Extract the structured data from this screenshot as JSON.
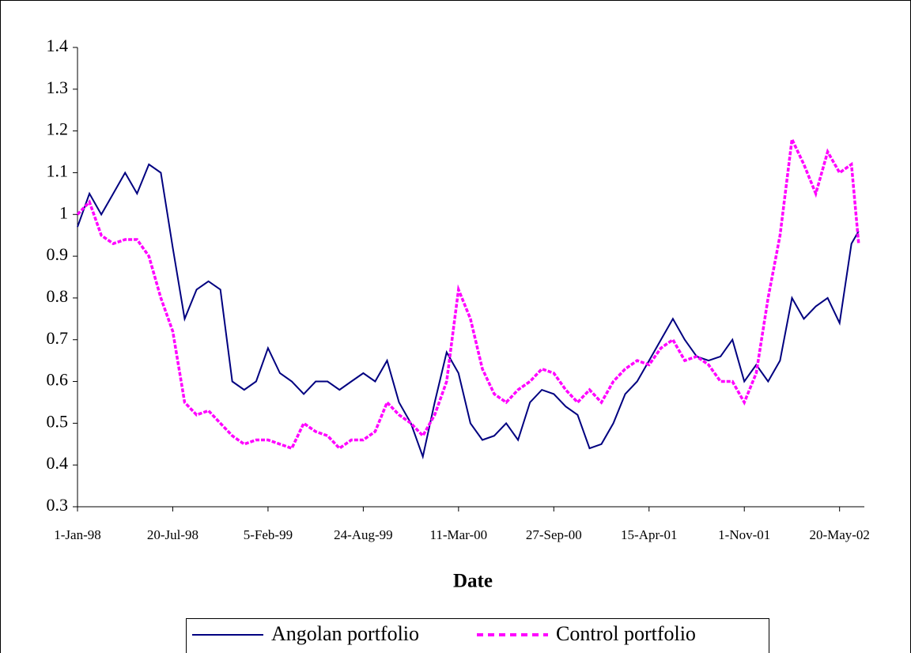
{
  "chart_data": {
    "type": "line",
    "x_label": "Date",
    "x": [
      "1998-01-01",
      "1998-01-26",
      "1998-02-20",
      "1998-03-17",
      "1998-04-11",
      "1998-05-06",
      "1998-05-31",
      "1998-06-25",
      "1998-07-20",
      "1998-08-14",
      "1998-09-08",
      "1998-10-03",
      "1998-10-28",
      "1998-11-22",
      "1998-12-17",
      "1999-01-11",
      "1999-02-05",
      "1999-03-02",
      "1999-03-27",
      "1999-04-21",
      "1999-05-16",
      "1999-06-10",
      "1999-07-05",
      "1999-07-30",
      "1999-08-24",
      "1999-09-18",
      "1999-10-13",
      "1999-11-07",
      "1999-12-02",
      "1999-12-27",
      "2000-01-21",
      "2000-02-15",
      "2000-03-11",
      "2000-04-05",
      "2000-04-30",
      "2000-05-25",
      "2000-06-19",
      "2000-07-14",
      "2000-08-08",
      "2000-09-02",
      "2000-09-27",
      "2000-10-22",
      "2000-11-16",
      "2000-12-11",
      "2001-01-05",
      "2001-01-30",
      "2001-02-24",
      "2001-03-21",
      "2001-04-15",
      "2001-05-10",
      "2001-06-04",
      "2001-06-29",
      "2001-07-24",
      "2001-08-18",
      "2001-09-12",
      "2001-10-07",
      "2001-11-01",
      "2001-11-26",
      "2001-12-21",
      "2002-01-15",
      "2002-02-09",
      "2002-03-06",
      "2002-03-31",
      "2002-04-25",
      "2002-05-20",
      "2002-06-14",
      "2002-06-29"
    ],
    "series": [
      {
        "name": "Angolan portfolio",
        "color": "#000080",
        "line_style": "solid",
        "values": [
          0.97,
          1.05,
          1.0,
          1.05,
          1.1,
          1.05,
          1.12,
          1.1,
          0.92,
          0.75,
          0.82,
          0.84,
          0.82,
          0.6,
          0.58,
          0.6,
          0.68,
          0.62,
          0.6,
          0.57,
          0.6,
          0.6,
          0.58,
          0.6,
          0.62,
          0.6,
          0.65,
          0.55,
          0.5,
          0.42,
          0.55,
          0.67,
          0.62,
          0.5,
          0.46,
          0.47,
          0.5,
          0.46,
          0.55,
          0.58,
          0.57,
          0.54,
          0.52,
          0.44,
          0.45,
          0.5,
          0.57,
          0.6,
          0.65,
          0.7,
          0.75,
          0.7,
          0.66,
          0.65,
          0.66,
          0.7,
          0.6,
          0.64,
          0.6,
          0.65,
          0.8,
          0.75,
          0.78,
          0.8,
          0.74,
          0.93,
          0.96
        ]
      },
      {
        "name": "Control portfolio",
        "color": "#ff00ff",
        "line_style": "dashed",
        "values": [
          1.0,
          1.03,
          0.95,
          0.93,
          0.94,
          0.94,
          0.9,
          0.8,
          0.72,
          0.55,
          0.52,
          0.53,
          0.5,
          0.47,
          0.45,
          0.46,
          0.46,
          0.45,
          0.44,
          0.5,
          0.48,
          0.47,
          0.44,
          0.46,
          0.46,
          0.48,
          0.55,
          0.52,
          0.5,
          0.47,
          0.52,
          0.6,
          0.82,
          0.75,
          0.63,
          0.57,
          0.55,
          0.58,
          0.6,
          0.63,
          0.62,
          0.58,
          0.55,
          0.58,
          0.55,
          0.6,
          0.63,
          0.65,
          0.64,
          0.68,
          0.7,
          0.65,
          0.66,
          0.64,
          0.6,
          0.6,
          0.55,
          0.62,
          0.8,
          0.95,
          1.18,
          1.12,
          1.05,
          1.15,
          1.1,
          1.12,
          0.93
        ]
      }
    ],
    "xlim": [
      "1998-01-01",
      "2002-07-11"
    ],
    "xticks": [
      {
        "value": "1998-01-01",
        "label": "1-Jan-98"
      },
      {
        "value": "1998-07-20",
        "label": "20-Jul-98"
      },
      {
        "value": "1999-02-05",
        "label": "5-Feb-99"
      },
      {
        "value": "1999-08-24",
        "label": "24-Aug-99"
      },
      {
        "value": "2000-03-11",
        "label": "11-Mar-00"
      },
      {
        "value": "2000-09-27",
        "label": "27-Sep-00"
      },
      {
        "value": "2001-04-15",
        "label": "15-Apr-01"
      },
      {
        "value": "2001-11-01",
        "label": "1-Nov-01"
      },
      {
        "value": "2002-05-20",
        "label": "20-May-02"
      }
    ],
    "ylim": [
      0.3,
      1.4
    ],
    "yticks": [
      0.3,
      0.4,
      0.5,
      0.6,
      0.7,
      0.8,
      0.9,
      1,
      1.1,
      1.2,
      1.3,
      1.4
    ],
    "legend": "bottom"
  }
}
